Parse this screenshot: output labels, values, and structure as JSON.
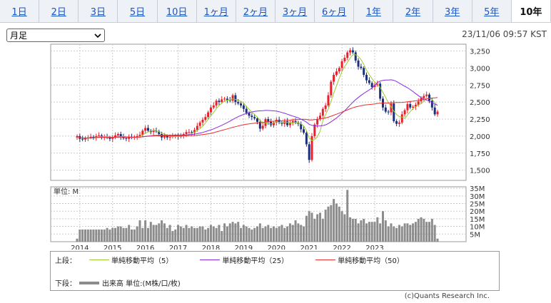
{
  "tabs": [
    {
      "label": "1日",
      "active": false
    },
    {
      "label": "2日",
      "active": false
    },
    {
      "label": "3日",
      "active": false
    },
    {
      "label": "5日",
      "active": false
    },
    {
      "label": "10日",
      "active": false
    },
    {
      "label": "1ヶ月",
      "active": false
    },
    {
      "label": "2ヶ月",
      "active": false
    },
    {
      "label": "3ヶ月",
      "active": false
    },
    {
      "label": "6ヶ月",
      "active": false
    },
    {
      "label": "1年",
      "active": false
    },
    {
      "label": "2年",
      "active": false
    },
    {
      "label": "3年",
      "active": false
    },
    {
      "label": "5年",
      "active": false
    },
    {
      "label": "10年",
      "active": true
    }
  ],
  "period_select": {
    "value": "月足",
    "icon": "chevron-down-icon"
  },
  "timestamp": "23/11/06 09:57 KST",
  "legend": {
    "upper_label": "上段：",
    "lower_label": "下段：",
    "ma5": "単純移動平均（5）",
    "ma25": "単純移動平均（25）",
    "ma50": "単純移動平均（50）",
    "volume": "出来高 単位:(M株/口/枚)"
  },
  "copyright": "(c)Quants Research Inc.",
  "colors": {
    "up": "#e8202a",
    "down": "#1c2f7a",
    "ma5": "#9acd32",
    "ma25": "#8a2be2",
    "ma50": "#e83030",
    "volume": "#8c8c8c",
    "grid": "#cccccc"
  },
  "chart_data": {
    "type": "candlestick",
    "price_axis": {
      "min": 1350,
      "max": 3350,
      "ticks": [
        "1,500",
        "1,750",
        "2,000",
        "2,250",
        "2,500",
        "2,750",
        "3,000",
        "3,250"
      ],
      "tick_values": [
        1500,
        1750,
        2000,
        2250,
        2500,
        2750,
        3000,
        3250
      ]
    },
    "volume_axis": {
      "unit_label": "単位: M",
      "max": 35,
      "ticks": [
        "5M",
        "10M",
        "15M",
        "20M",
        "25M",
        "30M",
        "35M"
      ],
      "tick_values": [
        5,
        10,
        15,
        20,
        25,
        30,
        35
      ]
    },
    "x_axis": {
      "ticks": [
        "2014",
        "2015",
        "2016",
        "2017",
        "2018",
        "2019",
        "2020",
        "2021",
        "2022",
        "2023"
      ]
    },
    "first_month": "2013-12",
    "closes": [
      2000,
      1960,
      1950,
      1970,
      1980,
      1990,
      1980,
      2000,
      2010,
      1985,
      1990,
      1980,
      1960,
      1980,
      2010,
      2030,
      1990,
      1970,
      1960,
      1990,
      1980,
      1990,
      2000,
      2020,
      2080,
      2120,
      2080,
      2060,
      2080,
      2070,
      2030,
      1980,
      2000,
      1980,
      1990,
      2000,
      2010,
      1990,
      2000,
      2030,
      2060,
      2060,
      2050,
      2090,
      2150,
      2200,
      2240,
      2280,
      2350,
      2420,
      2450,
      2520,
      2500,
      2540,
      2550,
      2530,
      2520,
      2600,
      2500,
      2480,
      2450,
      2400,
      2340,
      2300,
      2280,
      2260,
      2210,
      2110,
      2150,
      2250,
      2210,
      2160,
      2200,
      2240,
      2200,
      2180,
      2220,
      2160,
      2200,
      2220,
      2200,
      2180,
      2100,
      2050,
      1880,
      1650,
      2000,
      2170,
      2250,
      2300,
      2400,
      2450,
      2600,
      2800,
      2900,
      2950,
      3000,
      3100,
      3150,
      3230,
      3260,
      3230,
      3110,
      3020,
      3000,
      2900,
      2820,
      2780,
      2720,
      2750,
      2770,
      2550,
      2420,
      2360,
      2350,
      2480,
      2220,
      2180,
      2200,
      2320,
      2380,
      2470,
      2420,
      2430,
      2460,
      2510,
      2560,
      2590,
      2610,
      2520,
      2420,
      2320,
      2360
    ],
    "volumes": [
      2,
      8,
      8,
      8,
      8,
      8,
      8,
      8,
      8,
      8,
      8,
      9,
      8,
      9,
      9,
      10,
      10,
      9,
      9,
      11,
      8,
      8,
      10,
      14,
      9,
      14,
      9,
      13,
      11,
      11,
      12,
      14,
      12,
      9,
      11,
      7,
      8,
      11,
      10,
      9,
      11,
      9,
      10,
      9,
      9,
      10,
      10,
      8,
      9,
      11,
      10,
      9,
      11,
      7,
      12,
      10,
      12,
      13,
      12,
      13,
      9,
      11,
      10,
      9,
      8,
      9,
      10,
      12,
      9,
      10,
      11,
      9,
      10,
      9,
      10,
      11,
      9,
      10,
      12,
      11,
      14,
      12,
      11,
      10,
      17,
      20,
      19,
      15,
      18,
      19,
      15,
      21,
      23,
      24,
      28,
      25,
      23,
      20,
      18,
      34,
      16,
      15,
      15,
      12,
      14,
      15,
      12,
      13,
      13,
      13,
      16,
      12,
      20,
      14,
      10,
      12,
      10,
      9,
      11,
      10,
      12,
      12,
      11,
      12,
      13,
      15,
      16,
      15,
      13,
      13,
      15,
      11,
      2
    ]
  }
}
